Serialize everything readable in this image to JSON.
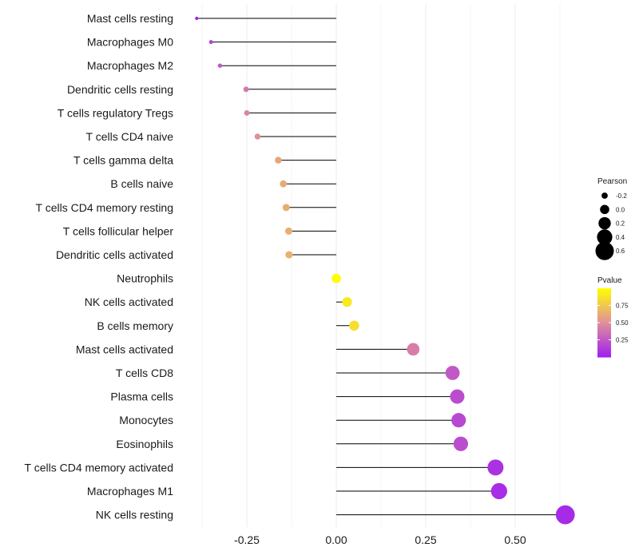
{
  "chart_data": {
    "type": "lollipop",
    "title": "",
    "xlabel": "",
    "ylabel": "",
    "xlim": [
      -0.39,
      0.64
    ],
    "xticks": [
      -0.25,
      0.0,
      0.25,
      0.5
    ],
    "xtick_labels": [
      "-0.25",
      "0.00",
      "0.25",
      "0.50"
    ],
    "baseline": 0.0,
    "categories": [
      "Mast cells resting",
      "Macrophages M0",
      "Macrophages M2",
      "Dendritic cells resting",
      "T cells regulatory  Tregs",
      "T cells CD4 naive",
      "T cells gamma delta",
      "B cells naive",
      "T cells CD4 memory resting",
      "T cells follicular helper",
      "Dendritic cells activated",
      "Neutrophils",
      "NK cells activated",
      "B cells memory",
      "Mast cells activated",
      "T cells CD8",
      "Plasma cells",
      "Monocytes",
      "Eosinophils",
      "T cells CD4 memory activated",
      "Macrophages M1",
      "NK cells resting"
    ],
    "pearson": [
      -0.39,
      -0.35,
      -0.325,
      -0.252,
      -0.25,
      -0.22,
      -0.162,
      -0.148,
      -0.14,
      -0.133,
      -0.132,
      0.0,
      0.03,
      0.05,
      0.215,
      0.325,
      0.338,
      0.342,
      0.348,
      0.445,
      0.455,
      0.64
    ],
    "pvalue": [
      0.02,
      0.15,
      0.25,
      0.4,
      0.45,
      0.5,
      0.6,
      0.62,
      0.63,
      0.64,
      0.65,
      0.99,
      0.9,
      0.85,
      0.42,
      0.25,
      0.2,
      0.18,
      0.2,
      0.08,
      0.06,
      0.05
    ],
    "legend_size": {
      "title": "Pearson",
      "labels": [
        "-0.2",
        "0.0",
        "0.2",
        "0.4",
        "0.6"
      ],
      "values": [
        -0.2,
        0.0,
        0.2,
        0.4,
        0.6
      ]
    },
    "legend_color": {
      "title": "Pvalue",
      "labels": [
        "0.25",
        "0.50",
        "0.75"
      ],
      "values": [
        0.25,
        0.5,
        0.75
      ],
      "range": [
        0.0,
        1.0
      ],
      "low_color": "#a020f0",
      "mid_color": "#e0909a",
      "high_color": "#ffff00"
    },
    "stem_color": "#000000",
    "grid_color": "#ebebeb",
    "legend_position": "right"
  }
}
